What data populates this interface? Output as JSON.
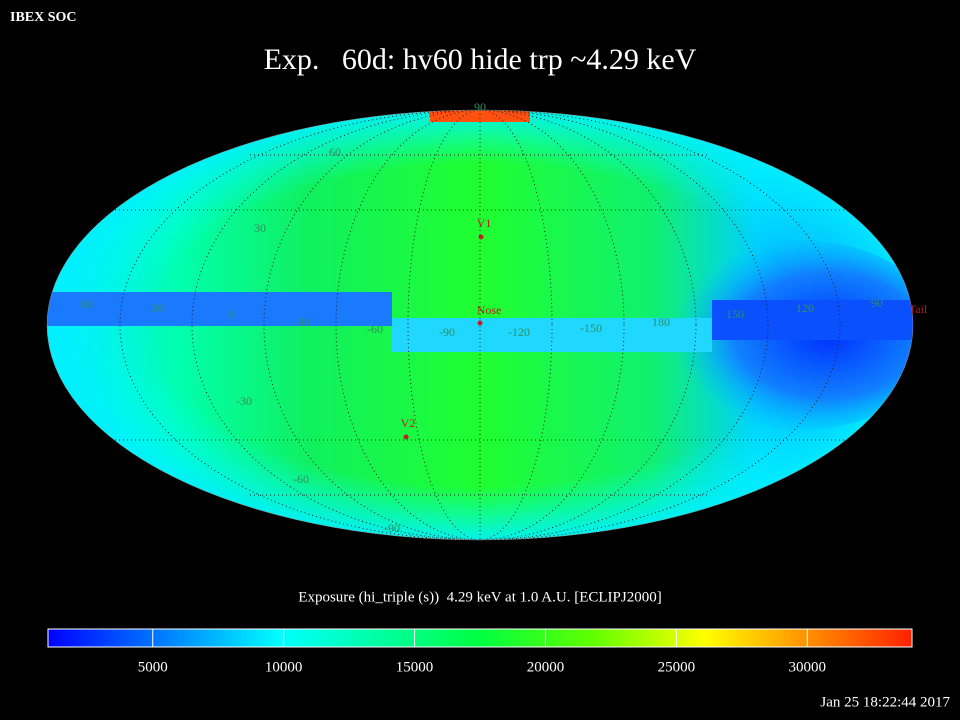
{
  "header": {
    "org": "IBEX SOC",
    "title": "Exp.   60d: hv60 hide trp ~4.29 keV"
  },
  "map": {
    "latitude_labels": [
      "90",
      "60",
      "30",
      "-30",
      "-60",
      "-90"
    ],
    "longitude_labels": [
      "60",
      "30",
      "0",
      "-30",
      "-60",
      "-90",
      "-120",
      "-150",
      "180",
      "150",
      "120",
      "90"
    ],
    "markers": [
      {
        "label": "V1"
      },
      {
        "label": "Nose"
      },
      {
        "label": "V2"
      },
      {
        "label": "Tail"
      }
    ]
  },
  "colorbar": {
    "caption": "Exposure (hi_triple (s))  4.29 keV at 1.0 A.U. [ECLIPJ2000]",
    "range": [
      1000,
      34000
    ],
    "ticks": [
      5000,
      10000,
      15000,
      20000,
      25000,
      30000
    ]
  },
  "timestamp": "Jan 25 18:22:44 2017"
}
